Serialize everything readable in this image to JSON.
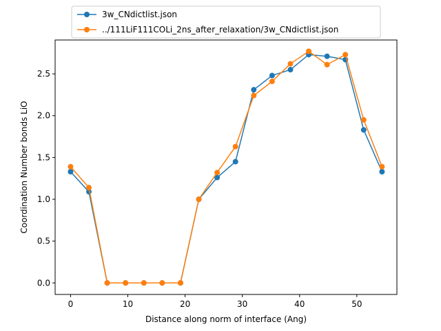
{
  "chart_data": {
    "type": "line",
    "title": "",
    "xlabel": "Distance along norm of interface (Ang)",
    "ylabel": "Coordination Number bonds LiO",
    "xlim": [
      -2.7,
      57.0
    ],
    "ylim": [
      -0.138,
      2.905
    ],
    "xticks": [
      0,
      10,
      20,
      30,
      40,
      50
    ],
    "yticks": [
      0.0,
      0.5,
      1.0,
      1.5,
      2.0,
      2.5
    ],
    "ytick_labels": [
      "0.0",
      "0.5",
      "1.0",
      "1.5",
      "2.0",
      "2.5"
    ],
    "grid": false,
    "legend_position": "top-center",
    "x": [
      0.0,
      3.2,
      6.4,
      9.6,
      12.8,
      16.0,
      19.2,
      22.4,
      25.6,
      28.8,
      32.0,
      35.2,
      38.4,
      41.6,
      44.8,
      48.0,
      51.2,
      54.4
    ],
    "series": [
      {
        "name": "3w_CNdictlist.json",
        "color": "#1f77b4",
        "values": [
          1.33,
          1.09,
          0.0,
          0.0,
          0.0,
          0.0,
          0.0,
          1.0,
          1.26,
          1.45,
          2.31,
          2.48,
          2.55,
          2.73,
          2.71,
          2.67,
          1.83,
          1.33
        ]
      },
      {
        "name": "../111LiF111COLi_2ns_after_relaxation/3w_CNdictlist.json",
        "color": "#ff7f0e",
        "values": [
          1.39,
          1.14,
          0.0,
          0.0,
          0.0,
          0.0,
          0.0,
          1.0,
          1.32,
          1.63,
          2.24,
          2.41,
          2.62,
          2.77,
          2.61,
          2.73,
          1.95,
          1.39
        ]
      }
    ]
  }
}
